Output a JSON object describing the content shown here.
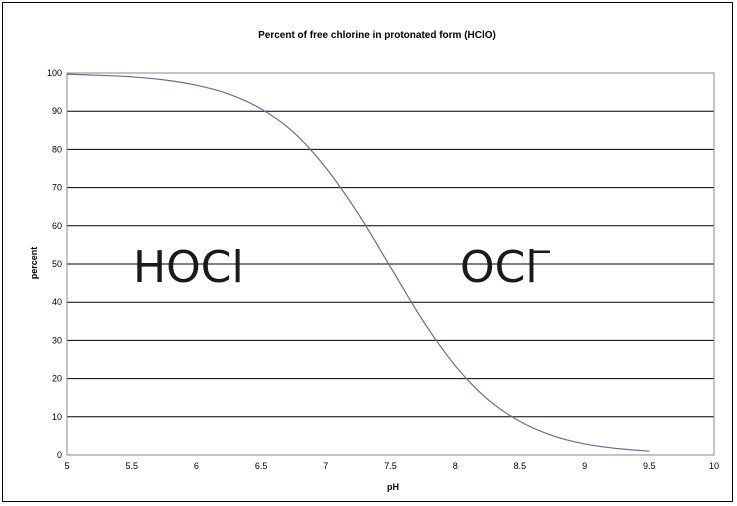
{
  "chart_data": {
    "type": "line",
    "title": "Percent of free chlorine in protonated form (HClO)",
    "xlabel": "pH",
    "ylabel": "percent",
    "xlim": [
      5,
      10
    ],
    "ylim": [
      0,
      100
    ],
    "xticks": [
      "5",
      "5.5",
      "6",
      "6.5",
      "7",
      "7.5",
      "8",
      "8.5",
      "9",
      "9.5",
      "10"
    ],
    "yticks": [
      "0",
      "10",
      "20",
      "30",
      "40",
      "50",
      "60",
      "70",
      "80",
      "90",
      "100"
    ],
    "grid": "horizontal",
    "series": [
      {
        "color": "#6b6a9e",
        "x": [
          5.0,
          5.25,
          5.5,
          5.75,
          6.0,
          6.25,
          6.5,
          6.75,
          7.0,
          7.25,
          7.5,
          7.75,
          8.0,
          8.25,
          8.5,
          8.75,
          9.0,
          9.25,
          9.5
        ],
        "y": [
          99.7,
          99.4,
          99.0,
          98.2,
          96.8,
          94.5,
          90.6,
          84.5,
          75.2,
          63.2,
          49.2,
          35.2,
          23.4,
          14.6,
          8.8,
          5.1,
          2.9,
          1.7,
          1.0
        ]
      }
    ],
    "annotations": {
      "left_region": "HOCl",
      "right_region_base": "OCl",
      "right_region_charge": "−"
    }
  }
}
